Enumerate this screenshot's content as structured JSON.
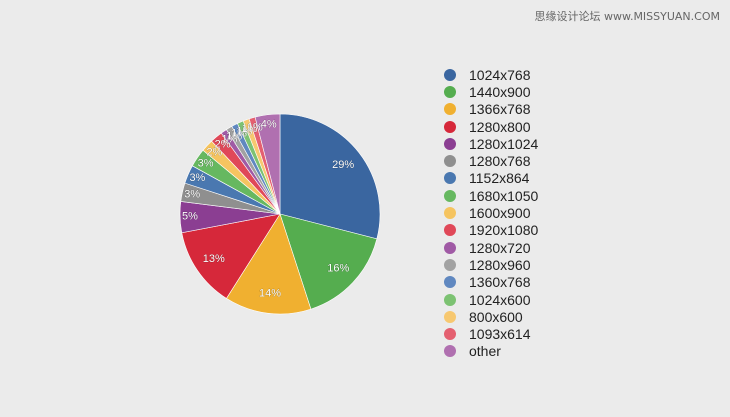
{
  "watermark": "思缘设计论坛 www.MISSYUAN.COM",
  "chart_data": {
    "type": "pie",
    "title": "",
    "start_angle_deg": 0,
    "direction": "clockwise",
    "legend_position": "right",
    "slices": [
      {
        "name": "1024x768",
        "value": 29,
        "label": "29%",
        "color": "#3a66a0"
      },
      {
        "name": "1440x900",
        "value": 16,
        "label": "16%",
        "color": "#55ad4f"
      },
      {
        "name": "1366x768",
        "value": 14,
        "label": "14%",
        "color": "#f0b030"
      },
      {
        "name": "1280x800",
        "value": 13,
        "label": "13%",
        "color": "#d6283a"
      },
      {
        "name": "1280x1024",
        "value": 5,
        "label": "5%",
        "color": "#8b3e92"
      },
      {
        "name": "1280x768",
        "value": 3,
        "label": "3%",
        "color": "#8f8f8f"
      },
      {
        "name": "1152x864",
        "value": 3,
        "label": "3%",
        "color": "#4a78b0"
      },
      {
        "name": "1680x1050",
        "value": 3,
        "label": "3%",
        "color": "#66b860"
      },
      {
        "name": "1600x900",
        "value": 2,
        "label": "2%",
        "color": "#f5c460"
      },
      {
        "name": "1920x1080",
        "value": 2,
        "label": "2%",
        "color": "#e04858"
      },
      {
        "name": "1280x720",
        "value": 1,
        "label": "1%",
        "color": "#a05aa5"
      },
      {
        "name": "1280x960",
        "value": 1,
        "label": "1%",
        "color": "#a2a2a2"
      },
      {
        "name": "1360x768",
        "value": 1,
        "label": "1%",
        "color": "#6088c0"
      },
      {
        "name": "1024x600",
        "value": 1,
        "label": "1%",
        "color": "#7cc272"
      },
      {
        "name": "800x600",
        "value": 1,
        "label": "1%",
        "color": "#f7c870"
      },
      {
        "name": "1093x614",
        "value": 1,
        "label": "1%",
        "color": "#e46070"
      },
      {
        "name": "other",
        "value": 4,
        "label": "4%",
        "color": "#b070b0"
      }
    ]
  }
}
